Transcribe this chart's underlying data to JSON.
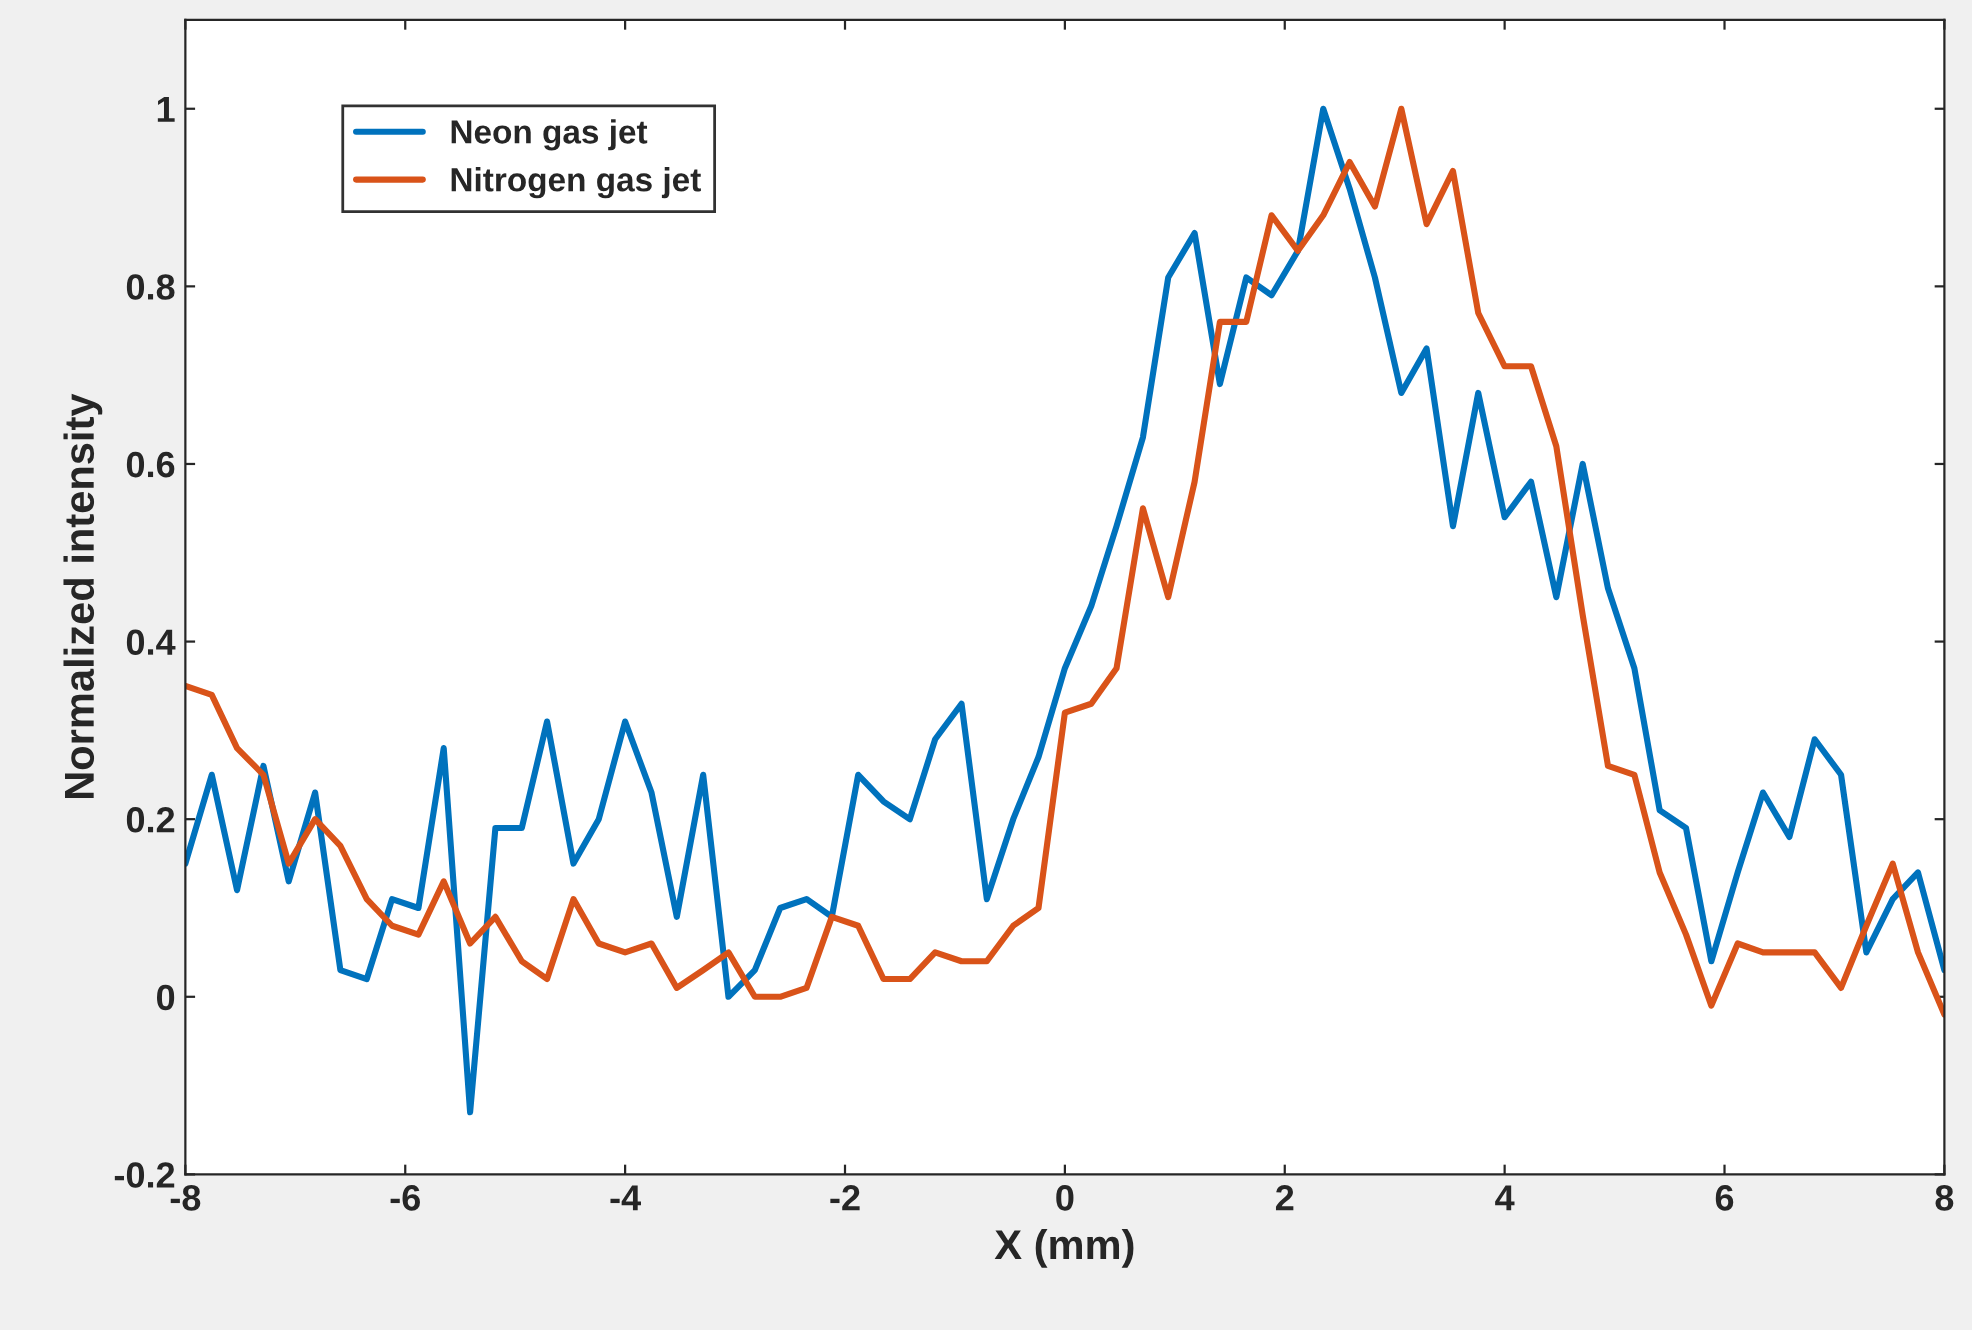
{
  "chart_data": {
    "type": "line",
    "xlabel": "X (mm)",
    "ylabel": "Normalized intensity",
    "x": [
      -8.0,
      -7.76,
      -7.53,
      -7.29,
      -7.06,
      -6.82,
      -6.59,
      -6.35,
      -6.12,
      -5.88,
      -5.65,
      -5.41,
      -5.18,
      -4.94,
      -4.71,
      -4.47,
      -4.24,
      -4.0,
      -3.76,
      -3.53,
      -3.29,
      -3.06,
      -2.82,
      -2.59,
      -2.35,
      -2.12,
      -1.88,
      -1.65,
      -1.41,
      -1.18,
      -0.94,
      -0.71,
      -0.47,
      -0.24,
      0.0,
      0.24,
      0.47,
      0.71,
      0.94,
      1.18,
      1.41,
      1.65,
      1.88,
      2.12,
      2.35,
      2.59,
      2.82,
      3.06,
      3.29,
      3.53,
      3.76,
      4.0,
      4.24,
      4.47,
      4.71,
      4.94,
      5.18,
      5.41,
      5.65,
      5.88,
      6.12,
      6.35,
      6.59,
      6.82,
      7.06,
      7.29,
      7.53,
      7.76,
      8.0
    ],
    "series": [
      {
        "name": "Neon gas jet",
        "color": "#0072bd",
        "values": [
          0.15,
          0.25,
          0.12,
          0.26,
          0.13,
          0.23,
          0.03,
          0.02,
          0.11,
          0.1,
          0.28,
          -0.13,
          0.19,
          0.19,
          0.31,
          0.15,
          0.2,
          0.31,
          0.23,
          0.09,
          0.25,
          0.0,
          0.03,
          0.1,
          0.11,
          0.09,
          0.25,
          0.22,
          0.2,
          0.29,
          0.33,
          0.11,
          0.2,
          0.27,
          0.37,
          0.44,
          0.53,
          0.63,
          0.81,
          0.86,
          0.69,
          0.81,
          0.79,
          0.84,
          1.0,
          0.91,
          0.81,
          0.68,
          0.73,
          0.53,
          0.68,
          0.54,
          0.58,
          0.45,
          0.6,
          0.46,
          0.37,
          0.21,
          0.19,
          0.04,
          0.14,
          0.23,
          0.18,
          0.29,
          0.25,
          0.05,
          0.11,
          0.14,
          0.03
        ]
      },
      {
        "name": "Nitrogen gas jet",
        "color": "#d95319",
        "values": [
          0.35,
          0.34,
          0.28,
          0.25,
          0.15,
          0.2,
          0.17,
          0.11,
          0.08,
          0.07,
          0.13,
          0.06,
          0.09,
          0.04,
          0.02,
          0.11,
          0.06,
          0.05,
          0.06,
          0.01,
          0.03,
          0.05,
          0.0,
          0.0,
          0.01,
          0.09,
          0.08,
          0.02,
          0.02,
          0.05,
          0.04,
          0.04,
          0.08,
          0.1,
          0.32,
          0.33,
          0.37,
          0.55,
          0.45,
          0.58,
          0.76,
          0.76,
          0.88,
          0.84,
          0.88,
          0.94,
          0.89,
          1.0,
          0.87,
          0.93,
          0.77,
          0.71,
          0.71,
          0.62,
          0.43,
          0.26,
          0.25,
          0.14,
          0.07,
          -0.01,
          0.06,
          0.05,
          0.05,
          0.05,
          0.01,
          0.08,
          0.15,
          0.05,
          -0.02
        ]
      }
    ],
    "xlim": [
      -8,
      8
    ],
    "xticks": [
      -8,
      -6,
      -4,
      -2,
      0,
      2,
      4,
      6,
      8
    ],
    "ylim": [
      -0.2,
      1.1
    ],
    "yticks": [
      -0.2,
      0,
      0.2,
      0.4,
      0.6,
      0.8,
      1
    ],
    "grid": false,
    "legend": "top left",
    "line_style": "solid",
    "marker": "none"
  }
}
